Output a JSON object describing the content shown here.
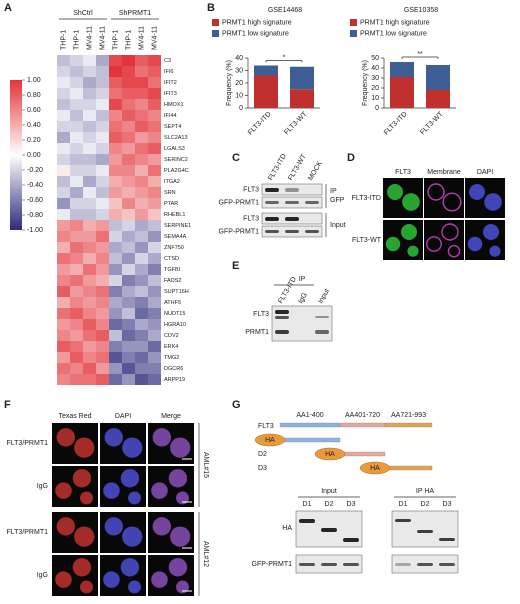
{
  "panel_letters": [
    "A",
    "B",
    "C",
    "D",
    "E",
    "F",
    "G"
  ],
  "heatmap": {
    "groups": [
      "ShCtrl",
      "ShPRMT1"
    ],
    "columns": [
      "THP-1",
      "THP-1",
      "MV4-11",
      "MV4-11",
      "THP-1",
      "THP-1",
      "MV4-11",
      "MV4-11"
    ],
    "genes": [
      "C3",
      "IFI6",
      "IFIT2",
      "IFIT3",
      "HMOX1",
      "IFI44",
      "SEPT4",
      "SLC2A13",
      "LGALS3",
      "SERINC2",
      "PLA2G4C",
      "ITGA2",
      "SRN",
      "PTAR",
      "RHEBL1",
      "SERPINE1",
      "SEMA4A",
      "ZNF750",
      "CTSD",
      "TGFBI",
      "FADS2",
      "SUPT16H",
      "ATHF5",
      "NUDT15",
      "HGRA10",
      "CDV2",
      "ERK4",
      "TMG2",
      "DGCR6",
      "ARPP19"
    ],
    "values": [
      [
        -0.3,
        -0.2,
        -0.1,
        -0.4,
        0.9,
        1.0,
        0.8,
        0.9
      ],
      [
        -0.2,
        -0.3,
        -0.2,
        -0.3,
        1.0,
        0.9,
        0.7,
        0.8
      ],
      [
        -0.1,
        -0.2,
        -0.4,
        -0.3,
        0.8,
        0.9,
        0.9,
        0.7
      ],
      [
        -0.2,
        -0.1,
        -0.3,
        -0.2,
        0.7,
        0.8,
        0.8,
        0.9
      ],
      [
        -0.3,
        -0.2,
        -0.2,
        -0.1,
        0.9,
        0.7,
        0.6,
        0.8
      ],
      [
        -0.1,
        -0.3,
        -0.1,
        -0.3,
        0.6,
        0.8,
        0.7,
        0.6
      ],
      [
        -0.2,
        -0.2,
        -0.3,
        -0.2,
        0.7,
        0.6,
        0.8,
        0.7
      ],
      [
        -0.4,
        -0.1,
        -0.2,
        -0.1,
        0.8,
        0.7,
        0.5,
        0.6
      ],
      [
        -0.1,
        -0.2,
        -0.1,
        -0.2,
        0.6,
        0.5,
        0.7,
        0.8
      ],
      [
        -0.2,
        -0.3,
        -0.3,
        -0.4,
        0.5,
        0.7,
        0.6,
        0.5
      ],
      [
        0.1,
        -0.2,
        -0.2,
        -0.1,
        0.6,
        0.6,
        0.4,
        0.7
      ],
      [
        -0.3,
        -0.1,
        -0.4,
        -0.2,
        0.4,
        0.5,
        0.6,
        0.4
      ],
      [
        -0.2,
        -0.4,
        -0.1,
        -0.3,
        0.5,
        0.4,
        0.5,
        0.6
      ],
      [
        -0.5,
        -0.2,
        -0.2,
        -0.1,
        0.3,
        0.6,
        0.4,
        0.5
      ],
      [
        -0.1,
        -0.3,
        -0.3,
        -0.2,
        0.4,
        0.3,
        0.5,
        0.3
      ],
      [
        0.5,
        0.6,
        0.4,
        0.5,
        -0.3,
        -0.2,
        -0.4,
        -0.3
      ],
      [
        0.6,
        0.5,
        0.5,
        0.7,
        -0.2,
        -0.4,
        -0.3,
        -0.5
      ],
      [
        0.4,
        0.7,
        0.6,
        0.5,
        -0.4,
        -0.3,
        -0.5,
        -0.2
      ],
      [
        0.7,
        0.6,
        0.4,
        0.6,
        -0.3,
        -0.5,
        -0.2,
        -0.4
      ],
      [
        0.5,
        0.4,
        0.7,
        0.5,
        -0.5,
        -0.2,
        -0.4,
        -0.6
      ],
      [
        0.6,
        0.7,
        0.5,
        0.4,
        -0.2,
        -0.6,
        -0.5,
        -0.3
      ],
      [
        0.8,
        0.5,
        0.6,
        0.7,
        -0.6,
        -0.4,
        -0.3,
        -0.5
      ],
      [
        0.4,
        0.6,
        0.5,
        0.6,
        -0.4,
        -0.5,
        -0.6,
        -0.4
      ],
      [
        0.7,
        0.8,
        0.6,
        0.5,
        -0.5,
        -0.3,
        -0.7,
        -0.6
      ],
      [
        0.5,
        0.6,
        0.8,
        0.6,
        -0.7,
        -0.6,
        -0.4,
        -0.5
      ],
      [
        0.6,
        0.5,
        0.7,
        0.8,
        -0.3,
        -0.7,
        -0.6,
        -0.4
      ],
      [
        0.8,
        0.7,
        0.5,
        0.6,
        -0.6,
        -0.5,
        -0.5,
        -0.7
      ],
      [
        0.5,
        0.8,
        0.6,
        0.7,
        -0.8,
        -0.6,
        -0.7,
        -0.5
      ],
      [
        0.7,
        0.6,
        0.8,
        0.5,
        -0.5,
        -0.8,
        -0.6,
        -0.6
      ],
      [
        0.6,
        0.7,
        0.7,
        0.8,
        -0.7,
        -0.5,
        -0.8,
        -0.7
      ]
    ],
    "scale_ticks": [
      {
        "value": 1,
        "label": "1.00"
      },
      {
        "value": 0.8,
        "label": "0.80"
      },
      {
        "value": 0.6,
        "label": "0.60"
      },
      {
        "value": 0.4,
        "label": "0.40"
      },
      {
        "value": 0.2,
        "label": "0.20"
      },
      {
        "value": 0,
        "label": "0.00"
      },
      {
        "value": -0.2,
        "label": "-0.20"
      },
      {
        "value": -0.4,
        "label": "-0.40"
      },
      {
        "value": -0.6,
        "label": "-0.60"
      },
      {
        "value": -0.8,
        "label": "-0.80"
      },
      {
        "value": -1,
        "label": "-1.00"
      }
    ]
  },
  "chart_data": [
    {
      "type": "bar",
      "title": "GSE14468",
      "ylabel": "Frequency (%)",
      "categories": [
        "FLT3-ITD",
        "FLT3-WT"
      ],
      "series": [
        {
          "name": "PRMT1 high signature",
          "color": "#c0302f",
          "values": [
            26,
            15
          ]
        },
        {
          "name": "PRMT1 low signature",
          "color": "#3e5f95",
          "values": [
            8,
            18
          ]
        }
      ],
      "ylim": [
        0,
        40
      ],
      "yticks": [
        0,
        10,
        20,
        30,
        40
      ],
      "significance": "*"
    },
    {
      "type": "bar",
      "title": "GSE10358",
      "ylabel": "Frequency (%)",
      "categories": [
        "FLT3-ITD",
        "FLT3-WT"
      ],
      "series": [
        {
          "name": "PRMT1 high signature",
          "color": "#c0302f",
          "values": [
            31,
            18
          ]
        },
        {
          "name": "PRMT1 low signature",
          "color": "#3e5f95",
          "values": [
            15,
            25
          ]
        }
      ],
      "ylim": [
        0,
        50
      ],
      "yticks": [
        0,
        10,
        20,
        30,
        40,
        50
      ],
      "significance": "**"
    }
  ],
  "panel_c": {
    "lanes": [
      "FLT3-ITD",
      "FLT3-WT",
      "MOCK"
    ],
    "rows": [
      "FLT3",
      "GFP-PRMT1",
      "FLT3",
      "GFP-PRMT1"
    ],
    "ip": "IP",
    "ip_target": "GFP",
    "input": "Input"
  },
  "panel_d": {
    "columns": [
      "FLT3",
      "Membrane",
      "DAPI"
    ],
    "rows": [
      "FLT3-ITD",
      "FLT3-WT"
    ]
  },
  "panel_e": {
    "title": "IP",
    "lanes": [
      "FLT3-ITD",
      "IgG",
      "Input"
    ],
    "rows": [
      "FLT3",
      "PRMT1"
    ]
  },
  "panel_f": {
    "columns": [
      "Texas Red",
      "DAPI",
      "Merge"
    ],
    "rows": [
      "FLT3/PRMT1",
      "IgG",
      "FLT3/PRMT1",
      "IgG"
    ],
    "cases": [
      "AML#15",
      "AML#12"
    ]
  },
  "panel_g": {
    "protein": "FLT3",
    "domains": [
      "AA1-400",
      "AA401-720",
      "AA721-993"
    ],
    "constructs": [
      "D1",
      "D2",
      "D3"
    ],
    "tag": "HA",
    "blot_groups": [
      "Input",
      "IP HA"
    ],
    "lanes": [
      "D1",
      "D2",
      "D3",
      "D1",
      "D2",
      "D3"
    ],
    "rows": [
      "HA",
      "GFP-PRMT1"
    ]
  }
}
